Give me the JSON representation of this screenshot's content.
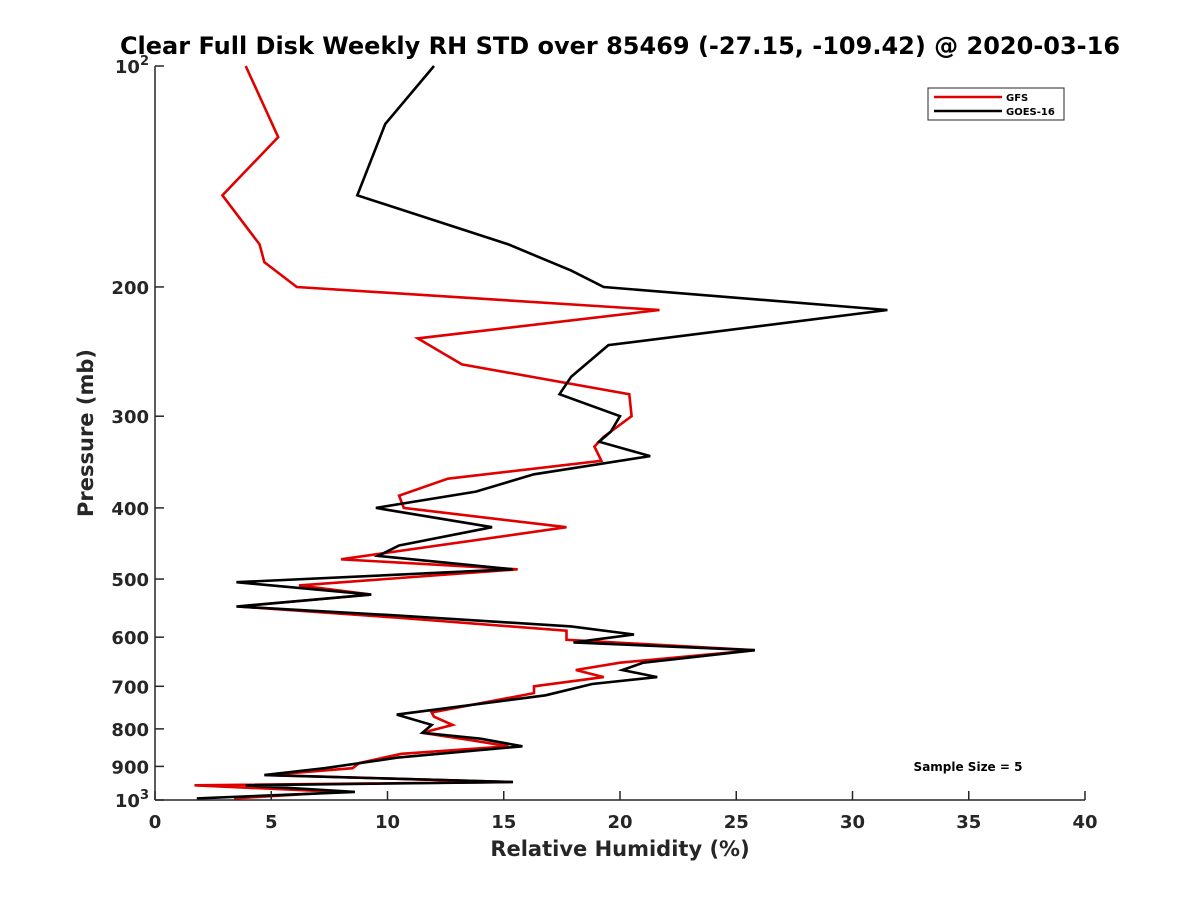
{
  "chart_data": {
    "type": "line",
    "title": "Clear Full Disk Weekly RH STD over 85469 (-27.15, -109.42) @ 2020-03-16",
    "xlabel": "Relative Humidity (%)",
    "ylabel": "Pressure (mb)",
    "xlim": [
      0,
      40
    ],
    "ylim": [
      100,
      1000
    ],
    "yscale": "log",
    "y_reversed": true,
    "grid": false,
    "x_ticks": [
      0,
      5,
      10,
      15,
      20,
      25,
      30,
      35,
      40
    ],
    "x_tick_labels": [
      "0",
      "5",
      "10",
      "15",
      "20",
      "25",
      "30",
      "35",
      "40"
    ],
    "y_ticks": [
      {
        "value": 100,
        "label": "10",
        "sup": "2"
      },
      {
        "value": 200,
        "label": "200",
        "sup": ""
      },
      {
        "value": 300,
        "label": "300",
        "sup": ""
      },
      {
        "value": 400,
        "label": "400",
        "sup": ""
      },
      {
        "value": 500,
        "label": "500",
        "sup": ""
      },
      {
        "value": 600,
        "label": "600",
        "sup": ""
      },
      {
        "value": 700,
        "label": "700",
        "sup": ""
      },
      {
        "value": 800,
        "label": "800",
        "sup": ""
      },
      {
        "value": 900,
        "label": "900",
        "sup": ""
      },
      {
        "value": 1000,
        "label": "10",
        "sup": "3"
      }
    ],
    "legend_position": "top-right",
    "annotation": "Sample Size = 5",
    "series": [
      {
        "name": "GFS",
        "color": "#e00000",
        "points": [
          [
            3.9,
            100
          ],
          [
            5.3,
            125
          ],
          [
            2.9,
            150
          ],
          [
            4.5,
            175
          ],
          [
            4.7,
            185
          ],
          [
            6.1,
            200
          ],
          [
            21.7,
            215
          ],
          [
            11.3,
            235
          ],
          [
            13.2,
            255
          ],
          [
            20.4,
            280
          ],
          [
            20.5,
            300
          ],
          [
            19.3,
            320
          ],
          [
            18.9,
            330
          ],
          [
            19.2,
            345
          ],
          [
            12.6,
            365
          ],
          [
            10.5,
            385
          ],
          [
            10.7,
            400
          ],
          [
            17.7,
            425
          ],
          [
            8.0,
            470
          ],
          [
            15.6,
            485
          ],
          [
            6.2,
            510
          ],
          [
            9.3,
            525
          ],
          [
            3.6,
            545
          ],
          [
            10.6,
            565
          ],
          [
            17.7,
            588
          ],
          [
            17.7,
            605
          ],
          [
            25.8,
            625
          ],
          [
            20.0,
            650
          ],
          [
            18.1,
            665
          ],
          [
            19.3,
            680
          ],
          [
            16.3,
            700
          ],
          [
            16.3,
            715
          ],
          [
            11.9,
            760
          ],
          [
            12.0,
            770
          ],
          [
            12.8,
            790
          ],
          [
            11.5,
            810
          ],
          [
            13.7,
            830
          ],
          [
            15.2,
            845
          ],
          [
            10.6,
            865
          ],
          [
            8.8,
            890
          ],
          [
            8.5,
            905
          ],
          [
            4.8,
            925
          ],
          [
            15.4,
            945
          ],
          [
            1.7,
            955
          ],
          [
            8.0,
            975
          ],
          [
            3.4,
            995
          ]
        ]
      },
      {
        "name": "GOES-16",
        "color": "#000000",
        "points": [
          [
            12.0,
            100
          ],
          [
            9.9,
            120
          ],
          [
            8.7,
            150
          ],
          [
            15.2,
            175
          ],
          [
            17.9,
            190
          ],
          [
            19.3,
            200
          ],
          [
            31.5,
            215
          ],
          [
            19.5,
            240
          ],
          [
            17.9,
            265
          ],
          [
            17.4,
            280
          ],
          [
            20.0,
            300
          ],
          [
            19.6,
            315
          ],
          [
            19.1,
            325
          ],
          [
            21.3,
            340
          ],
          [
            16.3,
            360
          ],
          [
            13.8,
            380
          ],
          [
            9.5,
            400
          ],
          [
            14.5,
            425
          ],
          [
            10.5,
            450
          ],
          [
            9.6,
            465
          ],
          [
            15.4,
            485
          ],
          [
            3.5,
            505
          ],
          [
            9.3,
            525
          ],
          [
            3.5,
            545
          ],
          [
            10.2,
            560
          ],
          [
            17.9,
            580
          ],
          [
            20.6,
            595
          ],
          [
            18.0,
            610
          ],
          [
            25.8,
            625
          ],
          [
            21.0,
            650
          ],
          [
            20.1,
            665
          ],
          [
            21.6,
            680
          ],
          [
            18.8,
            695
          ],
          [
            16.8,
            720
          ],
          [
            10.4,
            765
          ],
          [
            11.9,
            790
          ],
          [
            11.5,
            810
          ],
          [
            14.0,
            825
          ],
          [
            15.8,
            845
          ],
          [
            10.5,
            875
          ],
          [
            7.3,
            905
          ],
          [
            4.7,
            925
          ],
          [
            15.4,
            945
          ],
          [
            3.9,
            955
          ],
          [
            8.6,
            975
          ],
          [
            1.8,
            995
          ]
        ]
      }
    ]
  }
}
